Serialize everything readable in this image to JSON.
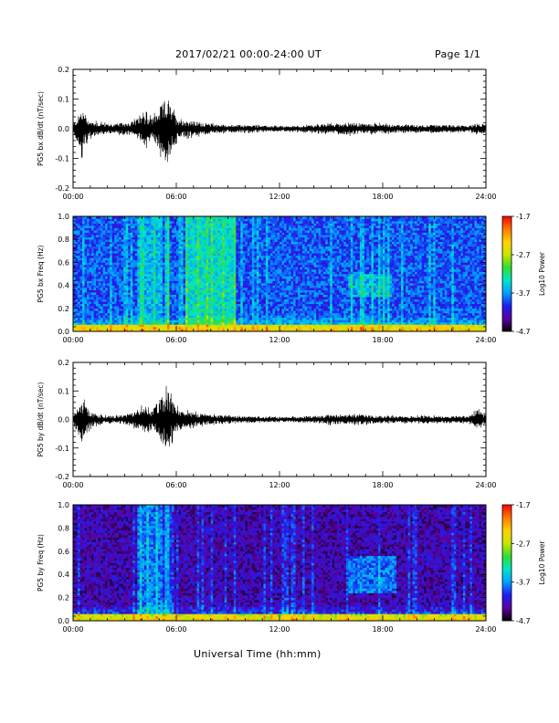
{
  "header": {
    "title": "2017/02/21  00:00-24:00 UT",
    "page": "Page 1/1"
  },
  "footer": {
    "xaxis_title": "Universal Time (hh:mm)"
  },
  "chart_data": [
    {
      "type": "line",
      "id": "bx-dbdt",
      "ylabel": "PG5 bx dB/dt (nT/sec)",
      "xlim": [
        0,
        24
      ],
      "ylim": [
        -0.2,
        0.2
      ],
      "x_ticks": [
        "00:00",
        "06:00",
        "12:00",
        "18:00",
        "24:00"
      ],
      "y_ticks": [
        "-0.2",
        "-0.1",
        "0.0",
        "0.1",
        "0.2"
      ],
      "envelope": {
        "x_hours": [
          0,
          0.3,
          0.5,
          0.8,
          1.0,
          1.5,
          2.0,
          2.5,
          3.0,
          3.5,
          4.0,
          4.2,
          4.6,
          5.0,
          5.3,
          5.5,
          5.7,
          6.0,
          6.5,
          7.0,
          8.0,
          9.0,
          10.0,
          11.0,
          12.0,
          13.0,
          14.0,
          15.0,
          16.0,
          17.0,
          18.0,
          19.0,
          20.0,
          21.0,
          22.0,
          23.0,
          23.5,
          24.0
        ],
        "max": [
          0.02,
          0.05,
          0.08,
          0.05,
          0.03,
          0.025,
          0.02,
          0.02,
          0.025,
          0.03,
          0.05,
          0.06,
          0.04,
          0.08,
          0.11,
          0.13,
          0.08,
          0.05,
          0.035,
          0.03,
          0.02,
          0.015,
          0.015,
          0.012,
          0.01,
          0.012,
          0.015,
          0.02,
          0.025,
          0.02,
          0.02,
          0.015,
          0.015,
          0.015,
          0.015,
          0.012,
          0.02,
          0.02
        ],
        "min": [
          -0.02,
          -0.06,
          -0.1,
          -0.06,
          -0.035,
          -0.025,
          -0.02,
          -0.02,
          -0.025,
          -0.03,
          -0.05,
          -0.07,
          -0.04,
          -0.08,
          -0.13,
          -0.14,
          -0.09,
          -0.05,
          -0.035,
          -0.03,
          -0.02,
          -0.015,
          -0.015,
          -0.012,
          -0.01,
          -0.012,
          -0.015,
          -0.02,
          -0.025,
          -0.02,
          -0.02,
          -0.015,
          -0.015,
          -0.015,
          -0.015,
          -0.012,
          -0.02,
          -0.02
        ]
      }
    },
    {
      "type": "heatmap",
      "id": "bx-spectrogram",
      "ylabel": "PG5 bx Freq (Hz)",
      "xlim": [
        0,
        24
      ],
      "ylim": [
        0.0,
        1.0
      ],
      "x_ticks": [
        "00:00",
        "06:00",
        "12:00",
        "18:00",
        "24:00"
      ],
      "y_ticks": [
        "0.0",
        "0.2",
        "0.4",
        "0.6",
        "0.8",
        "1.0"
      ],
      "colorbar": {
        "label": "Log10 Power",
        "range": [
          -4.7,
          -1.7
        ],
        "ticks": [
          "-1.7",
          "-2.7",
          "-3.7",
          "-4.7"
        ],
        "colors": [
          "#000000",
          "#5a00a0",
          "#1e1ef0",
          "#00a0ff",
          "#00e6c8",
          "#32dc32",
          "#c8e600",
          "#ffd200",
          "#ff7800",
          "#ff0000"
        ]
      },
      "background_log_power": -3.9,
      "features": [
        {
          "x_start": 3.7,
          "x_end": 5.2,
          "f_start": 0.0,
          "f_end": 1.0,
          "log_power": -3.6
        },
        {
          "x_start": 5.3,
          "x_end": 5.6,
          "f_start": 0.0,
          "f_end": 1.0,
          "log_power": -3.5
        },
        {
          "x_start": 6.6,
          "x_end": 9.4,
          "f_start": 0.0,
          "f_end": 1.0,
          "log_power": -3.4
        },
        {
          "x_start": 0.0,
          "x_end": 24.0,
          "f_start": 0.0,
          "f_end": 0.05,
          "log_power": -2.9
        },
        {
          "x_start": 16.0,
          "x_end": 18.5,
          "f_start": 0.3,
          "f_end": 0.5,
          "log_power": -3.6
        }
      ]
    },
    {
      "type": "line",
      "id": "by-dbdt",
      "ylabel": "PG5 by dB/dt (nT/sec)",
      "xlim": [
        0,
        24
      ],
      "ylim": [
        -0.2,
        0.2
      ],
      "x_ticks": [
        "00:00",
        "06:00",
        "12:00",
        "18:00",
        "24:00"
      ],
      "y_ticks": [
        "-0.2",
        "-0.1",
        "0.0",
        "0.1",
        "0.2"
      ],
      "envelope": {
        "x_hours": [
          0,
          0.3,
          0.5,
          0.8,
          1.0,
          1.5,
          2.0,
          2.5,
          3.0,
          3.5,
          4.0,
          4.2,
          4.6,
          5.0,
          5.3,
          5.5,
          5.7,
          6.0,
          6.5,
          7.0,
          8.0,
          9.0,
          10.0,
          11.0,
          12.0,
          13.0,
          14.0,
          15.0,
          16.0,
          17.0,
          18.0,
          19.0,
          20.0,
          21.0,
          22.0,
          23.0,
          23.5,
          24.0
        ],
        "max": [
          0.02,
          0.05,
          0.09,
          0.05,
          0.03,
          0.02,
          0.015,
          0.015,
          0.02,
          0.03,
          0.05,
          0.06,
          0.04,
          0.08,
          0.1,
          0.13,
          0.09,
          0.05,
          0.035,
          0.03,
          0.02,
          0.015,
          0.012,
          0.012,
          0.01,
          0.012,
          0.015,
          0.02,
          0.02,
          0.02,
          0.015,
          0.015,
          0.015,
          0.015,
          0.015,
          0.015,
          0.04,
          0.02
        ],
        "min": [
          -0.02,
          -0.06,
          -0.1,
          -0.06,
          -0.035,
          -0.02,
          -0.015,
          -0.015,
          -0.02,
          -0.03,
          -0.05,
          -0.07,
          -0.04,
          -0.08,
          -0.12,
          -0.1,
          -0.09,
          -0.05,
          -0.035,
          -0.03,
          -0.02,
          -0.015,
          -0.012,
          -0.012,
          -0.01,
          -0.012,
          -0.015,
          -0.02,
          -0.02,
          -0.02,
          -0.015,
          -0.015,
          -0.015,
          -0.015,
          -0.015,
          -0.015,
          -0.035,
          -0.02
        ]
      }
    },
    {
      "type": "heatmap",
      "id": "by-spectrogram",
      "ylabel": "PG5 by Freq (Hz)",
      "xlim": [
        0,
        24
      ],
      "ylim": [
        0.0,
        1.0
      ],
      "x_ticks": [
        "00:00",
        "06:00",
        "12:00",
        "18:00",
        "24:00"
      ],
      "y_ticks": [
        "0.0",
        "0.2",
        "0.4",
        "0.6",
        "0.8",
        "1.0"
      ],
      "colorbar": {
        "label": "Log10 Power",
        "range": [
          -4.7,
          -1.7
        ],
        "ticks": [
          "-1.7",
          "-2.7",
          "-3.7",
          "-4.7"
        ],
        "colors": [
          "#000000",
          "#5a00a0",
          "#1e1ef0",
          "#00a0ff",
          "#00e6c8",
          "#32dc32",
          "#c8e600",
          "#ffd200",
          "#ff7800",
          "#ff0000"
        ]
      },
      "background_log_power": -4.3,
      "features": [
        {
          "x_start": 3.7,
          "x_end": 5.2,
          "f_start": 0.0,
          "f_end": 1.0,
          "log_power": -3.8
        },
        {
          "x_start": 5.3,
          "x_end": 5.6,
          "f_start": 0.0,
          "f_end": 1.0,
          "log_power": -3.6
        },
        {
          "x_start": 0.0,
          "x_end": 24.0,
          "f_start": 0.0,
          "f_end": 0.06,
          "log_power": -3.0
        },
        {
          "x_start": 16.0,
          "x_end": 18.8,
          "f_start": 0.25,
          "f_end": 0.55,
          "log_power": -3.8
        }
      ]
    }
  ]
}
